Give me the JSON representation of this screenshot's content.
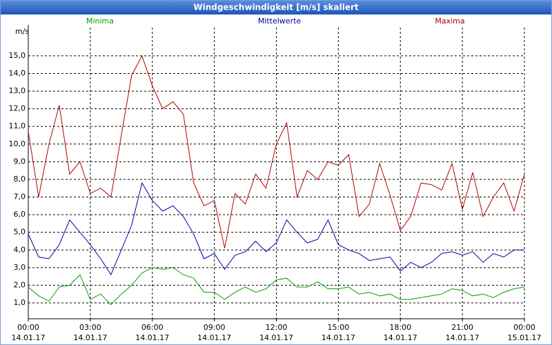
{
  "chart_data": {
    "type": "line",
    "title": "Windgeschwindigkeit [m/s] skaliert",
    "y_label": "m/s",
    "x": [
      0,
      0.5,
      1,
      1.5,
      2,
      2.5,
      3,
      3.5,
      4,
      4.5,
      5,
      5.5,
      6,
      6.5,
      7,
      7.5,
      8,
      8.5,
      9,
      9.5,
      10,
      10.5,
      11,
      11.5,
      12,
      12.5,
      13,
      13.5,
      14,
      14.5,
      15,
      15.5,
      16,
      16.5,
      17,
      17.5,
      18,
      18.5,
      19,
      19.5,
      20,
      20.5,
      21,
      21.5,
      22,
      22.5,
      23,
      23.5,
      24
    ],
    "series": [
      {
        "name": "Minima",
        "color": "#00a000",
        "values": [
          1.9,
          1.4,
          1.1,
          1.9,
          2.0,
          2.6,
          1.2,
          1.5,
          0.9,
          1.5,
          2.0,
          2.7,
          3.0,
          2.9,
          3.0,
          2.6,
          2.4,
          1.6,
          1.6,
          1.2,
          1.6,
          1.9,
          1.6,
          1.8,
          2.3,
          2.4,
          1.9,
          1.9,
          2.2,
          1.8,
          1.8,
          1.9,
          1.5,
          1.6,
          1.4,
          1.5,
          1.2,
          1.2,
          1.3,
          1.4,
          1.5,
          1.8,
          1.7,
          1.4,
          1.5,
          1.3,
          1.6,
          1.8,
          1.9
        ]
      },
      {
        "name": "Mittelwerte",
        "color": "#0000a0",
        "values": [
          4.9,
          3.6,
          3.5,
          4.3,
          5.7,
          5.0,
          4.3,
          3.5,
          2.6,
          4.0,
          5.4,
          7.8,
          6.8,
          6.2,
          6.5,
          5.9,
          4.9,
          3.5,
          3.8,
          2.9,
          3.7,
          3.9,
          4.5,
          3.9,
          4.4,
          5.7,
          5.0,
          4.4,
          4.6,
          5.7,
          4.3,
          4.0,
          3.8,
          3.4,
          3.5,
          3.6,
          2.8,
          3.3,
          3.0,
          3.3,
          3.8,
          3.9,
          3.7,
          3.9,
          3.3,
          3.8,
          3.6,
          4.0,
          4.0
        ]
      },
      {
        "name": "Maxima",
        "color": "#b00000",
        "values": [
          10.7,
          7.0,
          10.0,
          12.2,
          8.3,
          9.0,
          7.2,
          7.5,
          7.0,
          10.5,
          13.9,
          15.0,
          13.3,
          12.0,
          12.4,
          11.7,
          7.8,
          6.5,
          6.8,
          4.1,
          7.2,
          6.6,
          8.3,
          7.5,
          10.0,
          11.2,
          7.0,
          8.5,
          8.0,
          9.0,
          8.8,
          9.4,
          5.9,
          6.6,
          8.9,
          7.1,
          5.1,
          5.9,
          7.8,
          7.7,
          7.4,
          8.9,
          6.3,
          8.4,
          5.9,
          7.0,
          7.8,
          6.2,
          8.3
        ]
      }
    ],
    "xlim": [
      0,
      24
    ],
    "xticks": [
      {
        "value": 0,
        "label": "00:00"
      },
      {
        "value": 3,
        "label": "03:00"
      },
      {
        "value": 6,
        "label": "06:00"
      },
      {
        "value": 9,
        "label": "09:00"
      },
      {
        "value": 12,
        "label": "12:00"
      },
      {
        "value": 15,
        "label": "15:00"
      },
      {
        "value": 18,
        "label": "18:00"
      },
      {
        "value": 21,
        "label": "21:00"
      },
      {
        "value": 24,
        "label": "00:00"
      }
    ],
    "xtick_dates": [
      "14.01.17",
      "14.01.17",
      "14.01.17",
      "14.01.17",
      "14.01.17",
      "14.01.17",
      "14.01.17",
      "14.01.17",
      "15.01.17"
    ],
    "ylim": [
      0.1,
      16.6
    ],
    "yticks": [
      {
        "value": 1,
        "label": "1,0"
      },
      {
        "value": 2,
        "label": "2,0"
      },
      {
        "value": 3,
        "label": "3,0"
      },
      {
        "value": 4,
        "label": "4,0"
      },
      {
        "value": 5,
        "label": "5,0"
      },
      {
        "value": 6,
        "label": "6,0"
      },
      {
        "value": 7,
        "label": "7,0"
      },
      {
        "value": 8,
        "label": "8,0"
      },
      {
        "value": 9,
        "label": "9,0"
      },
      {
        "value": 10,
        "label": "10,0"
      },
      {
        "value": 11,
        "label": "11,0"
      },
      {
        "value": 12,
        "label": "12,0"
      },
      {
        "value": 13,
        "label": "13,0"
      },
      {
        "value": 14,
        "label": "14,0"
      },
      {
        "value": 15,
        "label": "15,0"
      }
    ],
    "grid": true
  }
}
